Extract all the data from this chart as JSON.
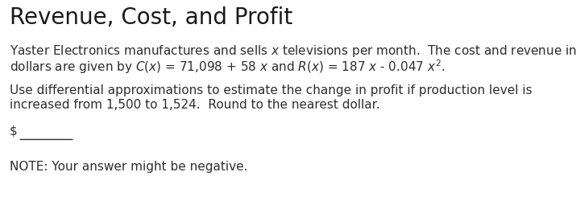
{
  "title": "Revenue, Cost, and Profit",
  "p1_l1_a": "Yaster Electronics manufactures and sells ",
  "p1_l1_b": "x",
  "p1_l1_c": " televisions per month.  The cost and revenue in",
  "p1_l2_pre": "dollars are given by ",
  "p1_l2_cx": "$C(x)$",
  "p1_l2_eq1": " = 71,098 + 58 ",
  "p1_l2_x1": "$x$",
  "p1_l2_and": " and ",
  "p1_l2_rx": "$R(x)$",
  "p1_l2_eq2": " = 187 ",
  "p1_l2_x2": "$x$",
  "p1_l2_rest": " - 0.047 ",
  "p1_l2_x2sq": "$x^2$",
  "p1_l2_dot": ".",
  "p2_l1": "Use differential approximations to estimate the change in profit if production level is",
  "p2_l2": "increased from 1,500 to 1,524.  Round to the nearest dollar.",
  "dollar": "$",
  "note": "NOTE: Your answer might be negative.",
  "bg_color": "#ffffff",
  "text_color": "#2e2e2e",
  "title_fs": 20,
  "body_fs": 11.0,
  "fig_w": 7.15,
  "fig_h": 2.6,
  "dpi": 100
}
